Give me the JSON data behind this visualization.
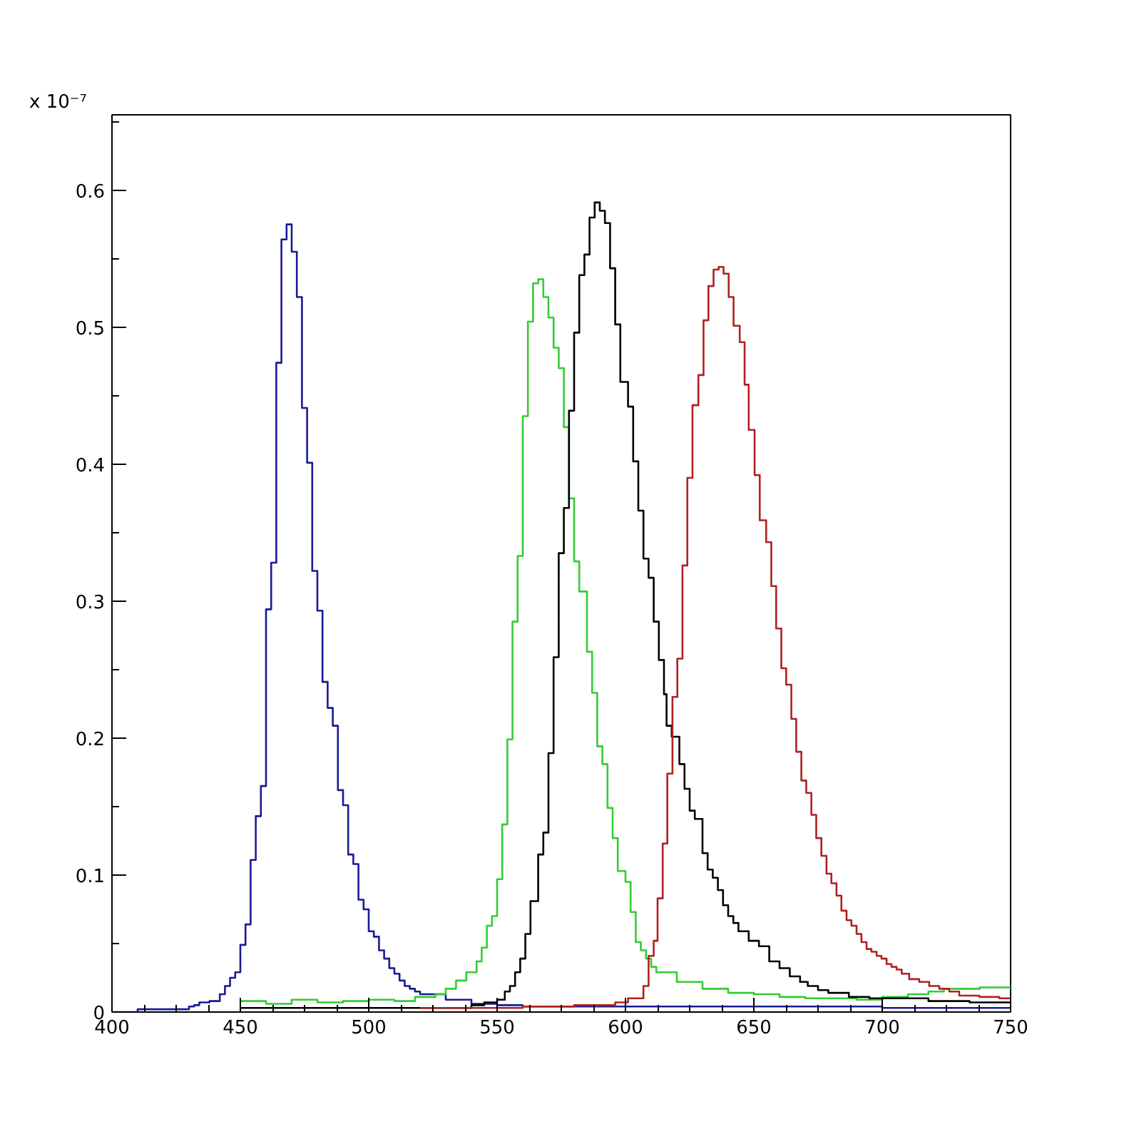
{
  "chart_data": {
    "type": "step",
    "xlim": [
      400,
      750
    ],
    "ylim": [
      0,
      0.655
    ],
    "xticks": [
      400,
      450,
      500,
      550,
      600,
      650,
      700,
      750
    ],
    "yticks": [
      0,
      0.1,
      0.2,
      0.3,
      0.4,
      0.5,
      0.6
    ],
    "grid": false,
    "marker": "none",
    "line_style": "solid",
    "annotations": [
      "x 10⁻⁷"
    ],
    "series": [
      {
        "color": "#1a1a96",
        "x": [
          400,
          410,
          430,
          432,
          434,
          438,
          442,
          444,
          446,
          448,
          450,
          452,
          454,
          456,
          458,
          460,
          462,
          464,
          466,
          468,
          470,
          472,
          474,
          476,
          478,
          480,
          482,
          484,
          486,
          488,
          490,
          492,
          494,
          496,
          498,
          500,
          502,
          504,
          506,
          508,
          510,
          512,
          514,
          516,
          518,
          520,
          530,
          540,
          550,
          560,
          700,
          750
        ],
        "values": [
          0,
          0.002,
          0.004,
          0.005,
          0.007,
          0.008,
          0.013,
          0.019,
          0.025,
          0.029,
          0.049,
          0.064,
          0.111,
          0.143,
          0.165,
          0.294,
          0.328,
          0.474,
          0.564,
          0.575,
          0.555,
          0.522,
          0.441,
          0.401,
          0.322,
          0.293,
          0.241,
          0.222,
          0.209,
          0.162,
          0.151,
          0.115,
          0.108,
          0.082,
          0.075,
          0.059,
          0.055,
          0.045,
          0.039,
          0.032,
          0.028,
          0.023,
          0.019,
          0.017,
          0.015,
          0.013,
          0.009,
          0.006,
          0.005,
          0.004,
          0.003,
          0.003
        ]
      },
      {
        "color": "#33cc33",
        "x": [
          450,
          460,
          470,
          480,
          490,
          500,
          510,
          518,
          526,
          530,
          534,
          538,
          542,
          544,
          546,
          548,
          550,
          552,
          554,
          556,
          558,
          560,
          562,
          564,
          566,
          568,
          570,
          572,
          574,
          576,
          578,
          580,
          582,
          585,
          587,
          589,
          591,
          593,
          595,
          597,
          600,
          602,
          604,
          606,
          608,
          610,
          612,
          620,
          630,
          640,
          650,
          660,
          670,
          680,
          690,
          700,
          710,
          718,
          724,
          738,
          750
        ],
        "values": [
          0.008,
          0.006,
          0.009,
          0.007,
          0.008,
          0.009,
          0.008,
          0.011,
          0.013,
          0.017,
          0.023,
          0.029,
          0.037,
          0.047,
          0.063,
          0.07,
          0.097,
          0.137,
          0.199,
          0.285,
          0.333,
          0.435,
          0.504,
          0.532,
          0.535,
          0.522,
          0.507,
          0.485,
          0.47,
          0.427,
          0.375,
          0.329,
          0.307,
          0.263,
          0.233,
          0.194,
          0.181,
          0.149,
          0.127,
          0.103,
          0.095,
          0.073,
          0.051,
          0.045,
          0.039,
          0.033,
          0.029,
          0.022,
          0.017,
          0.014,
          0.013,
          0.011,
          0.01,
          0.01,
          0.009,
          0.011,
          0.013,
          0.015,
          0.017,
          0.018,
          0.017
        ]
      },
      {
        "color": "#000000",
        "x": [
          450,
          540,
          545,
          550,
          553,
          555,
          557,
          559,
          561,
          563,
          566,
          568,
          570,
          572,
          574,
          576,
          578,
          580,
          582,
          584,
          586,
          588,
          590,
          592,
          594,
          596,
          598,
          601,
          603,
          605,
          607,
          609,
          611,
          613,
          615,
          616,
          618,
          621,
          623,
          625,
          627,
          630,
          632,
          634,
          636,
          638,
          640,
          642,
          644,
          648,
          652,
          656,
          660,
          664,
          668,
          671,
          675,
          679,
          687,
          695,
          703,
          718,
          734,
          750
        ],
        "values": [
          0.003,
          0.005,
          0.007,
          0.009,
          0.015,
          0.019,
          0.029,
          0.039,
          0.057,
          0.081,
          0.115,
          0.131,
          0.189,
          0.259,
          0.335,
          0.368,
          0.439,
          0.496,
          0.538,
          0.553,
          0.58,
          0.591,
          0.585,
          0.576,
          0.543,
          0.502,
          0.46,
          0.442,
          0.402,
          0.366,
          0.331,
          0.317,
          0.285,
          0.257,
          0.232,
          0.209,
          0.201,
          0.181,
          0.163,
          0.147,
          0.141,
          0.116,
          0.104,
          0.098,
          0.089,
          0.078,
          0.07,
          0.065,
          0.059,
          0.052,
          0.048,
          0.037,
          0.032,
          0.026,
          0.022,
          0.019,
          0.016,
          0.014,
          0.011,
          0.01,
          0.01,
          0.008,
          0.007,
          0.007
        ]
      },
      {
        "color": "#b02020",
        "x": [
          520,
          560,
          580,
          596,
          601,
          607,
          609,
          611,
          612.5,
          614.5,
          616.3,
          618.3,
          620.2,
          622.2,
          624.1,
          626.1,
          628.4,
          630.4,
          632.3,
          634.3,
          636.3,
          638.2,
          640.2,
          642.1,
          644.5,
          646.4,
          648,
          650.3,
          652.3,
          654.8,
          656.8,
          658.7,
          660.7,
          662.6,
          664.6,
          666.5,
          668.5,
          670.4,
          672.4,
          674.3,
          676.3,
          678.3,
          680.2,
          682.2,
          684.1,
          686.1,
          688,
          690,
          691.9,
          693.9,
          695.8,
          697.8,
          699.7,
          701.7,
          703.6,
          705.6,
          707.6,
          710.5,
          714.4,
          718.3,
          722.2,
          726.1,
          730,
          737.8,
          745.6,
          750
        ],
        "values": [
          0.003,
          0.004,
          0.005,
          0.007,
          0.01,
          0.019,
          0.041,
          0.052,
          0.083,
          0.123,
          0.174,
          0.23,
          0.258,
          0.326,
          0.39,
          0.443,
          0.465,
          0.505,
          0.53,
          0.542,
          0.544,
          0.539,
          0.522,
          0.501,
          0.489,
          0.458,
          0.425,
          0.392,
          0.359,
          0.343,
          0.311,
          0.28,
          0.251,
          0.239,
          0.214,
          0.19,
          0.169,
          0.16,
          0.144,
          0.127,
          0.114,
          0.101,
          0.094,
          0.085,
          0.074,
          0.067,
          0.063,
          0.057,
          0.051,
          0.046,
          0.044,
          0.041,
          0.039,
          0.035,
          0.033,
          0.031,
          0.028,
          0.024,
          0.022,
          0.019,
          0.017,
          0.015,
          0.012,
          0.011,
          0.01,
          0.01
        ]
      }
    ]
  }
}
